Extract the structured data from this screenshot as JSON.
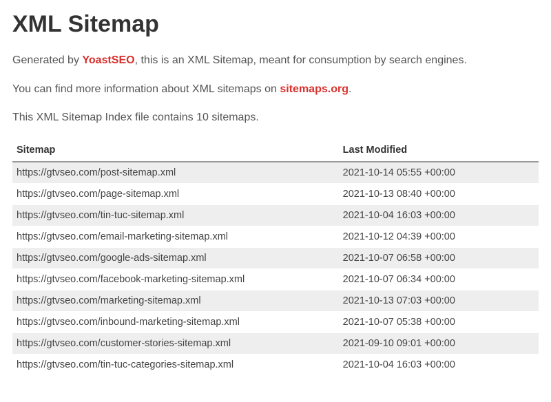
{
  "page": {
    "title": "XML Sitemap",
    "intro1_pre": "Generated by ",
    "intro1_link": "YoastSEO",
    "intro1_post": ", this is an XML Sitemap, meant for consumption by search engines.",
    "intro2_pre": "You can find more information about XML sitemaps on ",
    "intro2_link": "sitemaps.org",
    "intro2_post": ".",
    "intro3": "This XML Sitemap Index file contains 10 sitemaps."
  },
  "table": {
    "columns": [
      "Sitemap",
      "Last Modified"
    ],
    "rows": [
      {
        "url": "https://gtvseo.com/post-sitemap.xml",
        "modified": "2021-10-14 05:55 +00:00"
      },
      {
        "url": "https://gtvseo.com/page-sitemap.xml",
        "modified": "2021-10-13 08:40 +00:00"
      },
      {
        "url": "https://gtvseo.com/tin-tuc-sitemap.xml",
        "modified": "2021-10-04 16:03 +00:00"
      },
      {
        "url": "https://gtvseo.com/email-marketing-sitemap.xml",
        "modified": "2021-10-12 04:39 +00:00"
      },
      {
        "url": "https://gtvseo.com/google-ads-sitemap.xml",
        "modified": "2021-10-07 06:58 +00:00"
      },
      {
        "url": "https://gtvseo.com/facebook-marketing-sitemap.xml",
        "modified": "2021-10-07 06:34 +00:00"
      },
      {
        "url": "https://gtvseo.com/marketing-sitemap.xml",
        "modified": "2021-10-13 07:03 +00:00"
      },
      {
        "url": "https://gtvseo.com/inbound-marketing-sitemap.xml",
        "modified": "2021-10-07 05:38 +00:00"
      },
      {
        "url": "https://gtvseo.com/customer-stories-sitemap.xml",
        "modified": "2021-09-10 09:01 +00:00"
      },
      {
        "url": "https://gtvseo.com/tin-tuc-categories-sitemap.xml",
        "modified": "2021-10-04 16:03 +00:00"
      }
    ]
  },
  "styling": {
    "link_color": "#d9302c",
    "text_color": "#555555",
    "heading_color": "#333333",
    "row_odd_bg": "#eeeeee",
    "row_even_bg": "#ffffff",
    "header_border": "#999999",
    "font_family": "Arial",
    "title_fontsize": 34,
    "body_fontsize": 16,
    "table_fontsize": 14.5
  }
}
